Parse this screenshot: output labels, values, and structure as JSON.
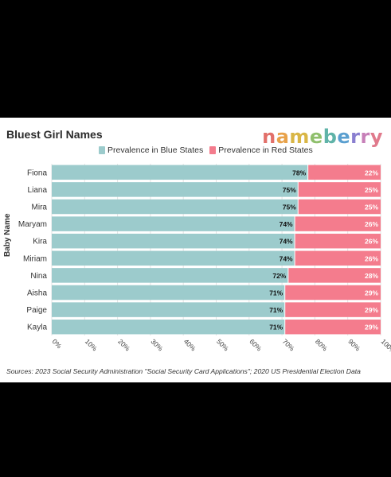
{
  "title": "Bluest Girl Names",
  "logo_text": "nameberry",
  "logo_colors": [
    "#e2706a",
    "#e8a24a",
    "#d9b646",
    "#8fbf6c",
    "#5fb3a8",
    "#5a9fd0",
    "#8a7fd0",
    "#c77fb8",
    "#e07a8c"
  ],
  "source": "Sources: 2023 Social Security Administration \"Social Security Card Applications\"; 2020 US Presidential Election Data",
  "chart_data": {
    "type": "bar",
    "orientation": "horizontal",
    "stacked": true,
    "title": "Bluest Girl Names",
    "ylabel": "Baby Name",
    "xlabel": "",
    "xlim": [
      0,
      100
    ],
    "x_ticks": [
      "0%",
      "10%",
      "20%",
      "30%",
      "40%",
      "50%",
      "60%",
      "70%",
      "80%",
      "90%",
      "100%"
    ],
    "legend_position": "top",
    "categories": [
      "Fiona",
      "Liana",
      "Mira",
      "Maryam",
      "Kira",
      "Miriam",
      "Nina",
      "Aisha",
      "Paige",
      "Kayla"
    ],
    "series": [
      {
        "name": "Prevalence in Blue States",
        "color": "#9ccbcc",
        "values": [
          78,
          75,
          75,
          74,
          74,
          74,
          72,
          71,
          71,
          71
        ],
        "labels": [
          "78%",
          "75%",
          "75%",
          "74%",
          "74%",
          "74%",
          "72%",
          "71%",
          "71%",
          "71%"
        ]
      },
      {
        "name": "Prevalence in Red States",
        "color": "#f47c8d",
        "values": [
          22,
          25,
          25,
          26,
          26,
          26,
          28,
          29,
          29,
          29
        ],
        "labels": [
          "22%",
          "25%",
          "25%",
          "26%",
          "26%",
          "26%",
          "28%",
          "29%",
          "29%",
          "29%"
        ]
      }
    ],
    "grid": true
  }
}
